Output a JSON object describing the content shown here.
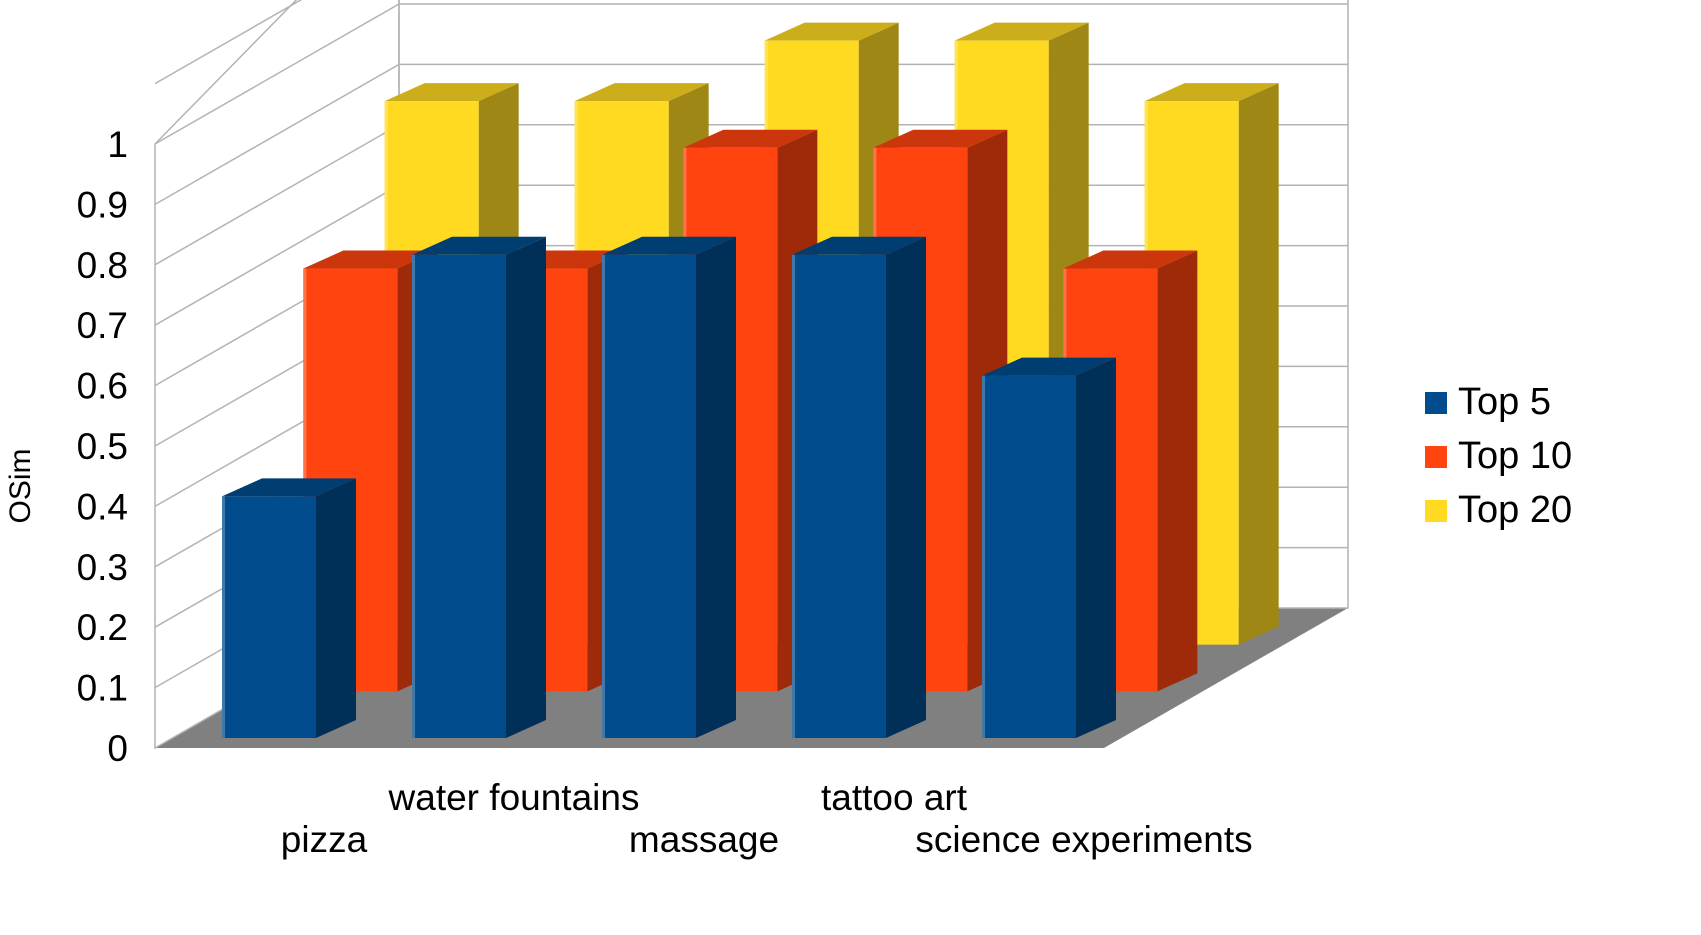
{
  "chart_data": {
    "type": "bar",
    "style": "3d-clustered-depth",
    "title": "",
    "xlabel": "",
    "ylabel": "OSim",
    "ylim": [
      0,
      1
    ],
    "yticks": [
      "0",
      "0.1",
      "0.2",
      "0.3",
      "0.4",
      "0.5",
      "0.6",
      "0.7",
      "0.8",
      "0.9",
      "1"
    ],
    "grid": true,
    "legend_position": "right",
    "categories": [
      "pizza",
      "water fountains",
      "massage",
      "tattoo art",
      "science experiments"
    ],
    "series": [
      {
        "name": "Top 5",
        "color": "#004C8C",
        "values": [
          0.4,
          0.8,
          0.8,
          0.8,
          0.6
        ]
      },
      {
        "name": "Top 10",
        "color": "#FF4410",
        "values": [
          0.7,
          0.7,
          0.9,
          0.9,
          0.7
        ]
      },
      {
        "name": "Top 20",
        "color": "#FFDA21",
        "values": [
          0.9,
          0.9,
          1.0,
          1.0,
          0.9
        ]
      }
    ]
  }
}
